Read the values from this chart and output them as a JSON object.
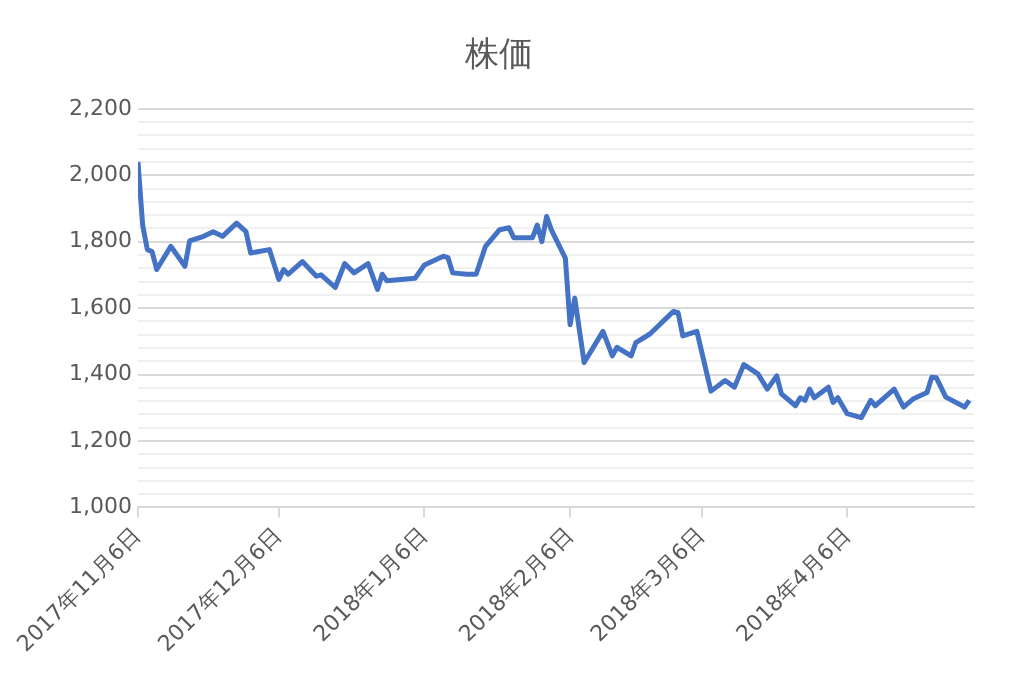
{
  "chart_data": {
    "type": "line",
    "title": "株価",
    "x": [
      "2017-11-06",
      "2017-11-07",
      "2017-11-08",
      "2017-11-09",
      "2017-11-10",
      "2017-11-13",
      "2017-11-16",
      "2017-11-17",
      "2017-11-20",
      "2017-11-22",
      "2017-11-24",
      "2017-11-27",
      "2017-11-29",
      "2017-11-30",
      "2017-12-04",
      "2017-12-06",
      "2017-12-07",
      "2017-12-08",
      "2017-12-11",
      "2017-12-14",
      "2017-12-15",
      "2017-12-18",
      "2017-12-20",
      "2017-12-22",
      "2017-12-25",
      "2017-12-27",
      "2017-12-28",
      "2017-12-29",
      "2018-01-04",
      "2018-01-06",
      "2018-01-10",
      "2018-01-11",
      "2018-01-12",
      "2018-01-15",
      "2018-01-17",
      "2018-01-19",
      "2018-01-22",
      "2018-01-24",
      "2018-01-25",
      "2018-01-29",
      "2018-01-30",
      "2018-01-31",
      "2018-02-01",
      "2018-02-02",
      "2018-02-05",
      "2018-02-06",
      "2018-02-07",
      "2018-02-09",
      "2018-02-13",
      "2018-02-15",
      "2018-02-16",
      "2018-02-19",
      "2018-02-20",
      "2018-02-23",
      "2018-02-28",
      "2018-03-01",
      "2018-03-02",
      "2018-03-05",
      "2018-03-08",
      "2018-03-11",
      "2018-03-13",
      "2018-03-15",
      "2018-03-18",
      "2018-03-20",
      "2018-03-22",
      "2018-03-23",
      "2018-03-26",
      "2018-03-27",
      "2018-03-28",
      "2018-03-29",
      "2018-03-30",
      "2018-04-02",
      "2018-04-03",
      "2018-04-04",
      "2018-04-06",
      "2018-04-09",
      "2018-04-11",
      "2018-04-12",
      "2018-04-16",
      "2018-04-18",
      "2018-04-20",
      "2018-04-23",
      "2018-04-24",
      "2018-04-25",
      "2018-04-27",
      "2018-05-01",
      "2018-05-02"
    ],
    "series": [
      {
        "color": "#4472c4",
        "values": [
          2040,
          1850,
          1776,
          1770,
          1716,
          1786,
          1726,
          1802,
          1816,
          1830,
          1816,
          1856,
          1830,
          1766,
          1776,
          1686,
          1716,
          1702,
          1740,
          1696,
          1700,
          1662,
          1734,
          1706,
          1734,
          1656,
          1702,
          1682,
          1690,
          1730,
          1756,
          1752,
          1706,
          1702,
          1702,
          1786,
          1836,
          1842,
          1812,
          1812,
          1850,
          1800,
          1876,
          1836,
          1750,
          1550,
          1630,
          1436,
          1530,
          1456,
          1482,
          1456,
          1496,
          1522,
          1590,
          1586,
          1516,
          1530,
          1350,
          1382,
          1362,
          1430,
          1402,
          1356,
          1396,
          1342,
          1306,
          1330,
          1322,
          1356,
          1330,
          1362,
          1316,
          1330,
          1282,
          1270,
          1322,
          1306,
          1356,
          1302,
          1326,
          1346,
          1392,
          1390,
          1332,
          1302,
          1322
        ]
      }
    ],
    "xlim": [
      "2017-11-06",
      "2018-05-03"
    ],
    "xticks": [
      {
        "value": "2017-11-06",
        "label": "2017年11月6日"
      },
      {
        "value": "2017-12-06",
        "label": "2017年12月6日"
      },
      {
        "value": "2018-01-06",
        "label": "2018年1月6日"
      },
      {
        "value": "2018-02-06",
        "label": "2018年2月6日"
      },
      {
        "value": "2018-03-06",
        "label": "2018年3月6日"
      },
      {
        "value": "2018-04-06",
        "label": "2018年4月6日"
      }
    ],
    "ylim": [
      1000,
      2200
    ],
    "yticks": [
      {
        "value": 1000,
        "label": "1,000"
      },
      {
        "value": 1040,
        "label": null
      },
      {
        "value": 1080,
        "label": null
      },
      {
        "value": 1120,
        "label": null
      },
      {
        "value": 1160,
        "label": null
      },
      {
        "value": 1200,
        "label": "1,200"
      },
      {
        "value": 1240,
        "label": null
      },
      {
        "value": 1280,
        "label": null
      },
      {
        "value": 1320,
        "label": null
      },
      {
        "value": 1360,
        "label": null
      },
      {
        "value": 1400,
        "label": "1,400"
      },
      {
        "value": 1440,
        "label": null
      },
      {
        "value": 1480,
        "label": null
      },
      {
        "value": 1520,
        "label": null
      },
      {
        "value": 1560,
        "label": null
      },
      {
        "value": 1600,
        "label": "1,600"
      },
      {
        "value": 1640,
        "label": null
      },
      {
        "value": 1680,
        "label": null
      },
      {
        "value": 1720,
        "label": null
      },
      {
        "value": 1760,
        "label": null
      },
      {
        "value": 1800,
        "label": "1,800"
      },
      {
        "value": 1840,
        "label": null
      },
      {
        "value": 1880,
        "label": null
      },
      {
        "value": 1920,
        "label": null
      },
      {
        "value": 1960,
        "label": null
      },
      {
        "value": 2000,
        "label": "2,000"
      },
      {
        "value": 2040,
        "label": null
      },
      {
        "value": 2080,
        "label": null
      },
      {
        "value": 2120,
        "label": null
      },
      {
        "value": 2160,
        "label": null
      },
      {
        "value": 2200,
        "label": "2,200"
      }
    ],
    "grid": "y",
    "legend": false,
    "marker": "none",
    "line_style": "solid"
  }
}
